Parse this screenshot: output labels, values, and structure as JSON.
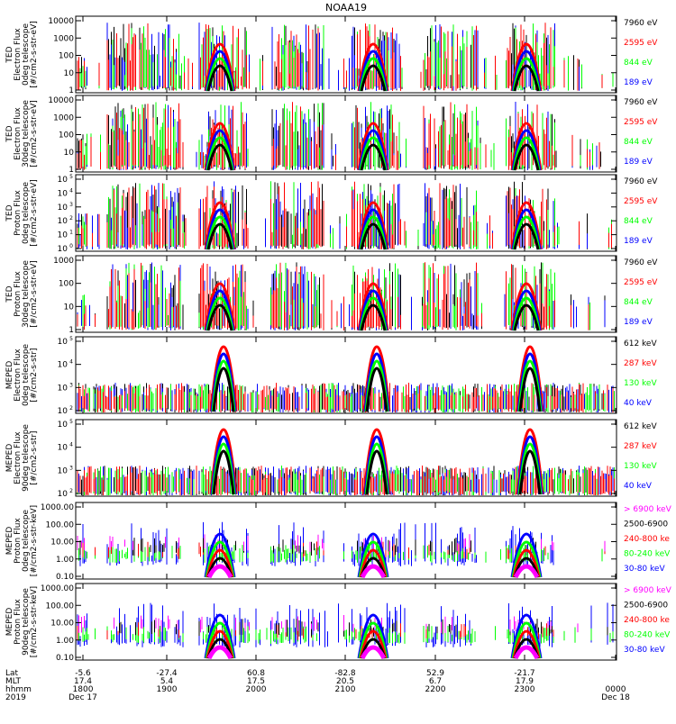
{
  "title": "NOAA19",
  "colors": {
    "black": "#000000",
    "red": "#ff0000",
    "green": "#00ff00",
    "blue": "#0000ff",
    "magenta": "#ff00ff"
  },
  "panels": [
    {
      "id": "ted-e-0",
      "ylabel": [
        "TED",
        "Electron Flux",
        "0deg telescope",
        "[#/cm2-s-str-eV]"
      ],
      "ytick_style": "plain",
      "ytick_labels": [
        "1",
        "10",
        "100",
        "1000",
        "10000"
      ],
      "legend": [
        {
          "text": "7960 eV",
          "color": "#000000"
        },
        {
          "text": "2595 eV",
          "color": "#ff0000"
        },
        {
          "text": "844 eV",
          "color": "#00ff00"
        },
        {
          "text": "189 eV",
          "color": "#0000ff"
        }
      ]
    },
    {
      "id": "ted-e-30",
      "ylabel": [
        "TED",
        "Electron Flux",
        "30deg telescope",
        "[#/cm2-s-str-eV]"
      ],
      "ytick_style": "plain",
      "ytick_labels": [
        "1",
        "10",
        "100",
        "1000",
        "10000"
      ],
      "legend": [
        {
          "text": "7960 eV",
          "color": "#000000"
        },
        {
          "text": "2595 eV",
          "color": "#ff0000"
        },
        {
          "text": "844 eV",
          "color": "#00ff00"
        },
        {
          "text": "189 eV",
          "color": "#0000ff"
        }
      ]
    },
    {
      "id": "ted-p-0",
      "ylabel": [
        "TED",
        "Proton Flux",
        "0deg telescope",
        "[#/cm2-s-str-eV]"
      ],
      "ytick_style": "exp",
      "ytick_labels": [
        "10",
        "10",
        "10",
        "10",
        "10",
        "10"
      ],
      "ytick_exps": [
        "0",
        "1",
        "2",
        "3",
        "4",
        "5"
      ],
      "legend": [
        {
          "text": "7960 eV",
          "color": "#000000"
        },
        {
          "text": "2595 eV",
          "color": "#ff0000"
        },
        {
          "text": "844 eV",
          "color": "#00ff00"
        },
        {
          "text": "189 eV",
          "color": "#0000ff"
        }
      ]
    },
    {
      "id": "ted-p-30",
      "ylabel": [
        "TED",
        "Proton Flux",
        "30deg telescope",
        "[#/cm2-s-str-eV]"
      ],
      "ytick_style": "plain",
      "ytick_labels": [
        "1",
        "10",
        "100",
        "1000"
      ],
      "legend": [
        {
          "text": "7960 eV",
          "color": "#000000"
        },
        {
          "text": "2595 eV",
          "color": "#ff0000"
        },
        {
          "text": "844 eV",
          "color": "#00ff00"
        },
        {
          "text": "189 eV",
          "color": "#0000ff"
        }
      ]
    },
    {
      "id": "mep-e-0",
      "ylabel": [
        "MEPED",
        "Electron Flux",
        "0deg telescope",
        "[#/cm2-s-str]"
      ],
      "ytick_style": "exp",
      "ytick_labels": [
        "10",
        "10",
        "10",
        "10"
      ],
      "ytick_exps": [
        "2",
        "3",
        "4",
        "5"
      ],
      "legend": [
        {
          "text": "612 keV",
          "color": "#000000"
        },
        {
          "text": "287 keV",
          "color": "#ff0000"
        },
        {
          "text": "130 keV",
          "color": "#00ff00"
        },
        {
          "text": "40 keV",
          "color": "#0000ff"
        }
      ]
    },
    {
      "id": "mep-e-90",
      "ylabel": [
        "MEPED",
        "Electron Flux",
        "90deg telescope",
        "[#/cm2-s-str]"
      ],
      "ytick_style": "exp",
      "ytick_labels": [
        "10",
        "10",
        "10",
        "10"
      ],
      "ytick_exps": [
        "2",
        "3",
        "4",
        "5"
      ],
      "legend": [
        {
          "text": "612 keV",
          "color": "#000000"
        },
        {
          "text": "287 keV",
          "color": "#ff0000"
        },
        {
          "text": "130 keV",
          "color": "#00ff00"
        },
        {
          "text": "40 keV",
          "color": "#0000ff"
        }
      ]
    },
    {
      "id": "mep-p-0",
      "ylabel": [
        "MEPED",
        "Proton Flux",
        "0deg telescope",
        "[#/cm2-s-str-keV]"
      ],
      "ytick_style": "plain",
      "ytick_labels": [
        "0.10",
        "1.00",
        "10.00",
        "100.00",
        "1000.00"
      ],
      "legend": [
        {
          "text": "> 6900 keV",
          "color": "#ff00ff"
        },
        {
          "text": "2500-6900",
          "color": "#000000"
        },
        {
          "text": "240-800 ke",
          "color": "#ff0000"
        },
        {
          "text": "80-240 keV",
          "color": "#00ff00"
        },
        {
          "text": "30-80 keV",
          "color": "#0000ff"
        }
      ]
    },
    {
      "id": "mep-p-90",
      "ylabel": [
        "MEPED",
        "Proton Flux",
        "90deg telescope",
        "[#/cm2-s-str-keV]"
      ],
      "ytick_style": "plain",
      "ytick_labels": [
        "0.10",
        "1.00",
        "10.00",
        "100.00",
        "1000.00"
      ],
      "legend": [
        {
          "text": "> 6900 keV",
          "color": "#ff00ff"
        },
        {
          "text": "2500-6900",
          "color": "#000000"
        },
        {
          "text": "240-800 ke",
          "color": "#ff0000"
        },
        {
          "text": "80-240 keV",
          "color": "#00ff00"
        },
        {
          "text": "30-80 keV",
          "color": "#0000ff"
        }
      ]
    }
  ],
  "xaxis": {
    "row_labels": [
      "Lat",
      "MLT",
      "hhmm",
      "2019"
    ],
    "ticks": [
      {
        "lat": "-5.6",
        "mlt": "17.4",
        "hhmm": "1800",
        "date": "Dec 17"
      },
      {
        "lat": "-27.4",
        "mlt": "5.4",
        "hhmm": "1900",
        "date": ""
      },
      {
        "lat": "60.8",
        "mlt": "17.5",
        "hhmm": "2000",
        "date": ""
      },
      {
        "lat": "-82.8",
        "mlt": "20.5",
        "hhmm": "2100",
        "date": ""
      },
      {
        "lat": "52.9",
        "mlt": "6.7",
        "hhmm": "2200",
        "date": ""
      },
      {
        "lat": "-21.7",
        "mlt": "17.9",
        "hhmm": "2300",
        "date": ""
      },
      {
        "lat": "",
        "mlt": "",
        "hhmm": "0000",
        "date": "Dec 18"
      }
    ]
  },
  "chart_data": {
    "type": "line",
    "title": "NOAA19",
    "x": [
      "1800",
      "1900",
      "2000",
      "2100",
      "2200",
      "2300",
      "0000"
    ],
    "xlabel": "hhmm",
    "yscale": "log",
    "grid": false,
    "legend_placement": "right of each panel",
    "passes_hhmm": [
      "1948",
      "2130",
      "2312"
    ]
  }
}
